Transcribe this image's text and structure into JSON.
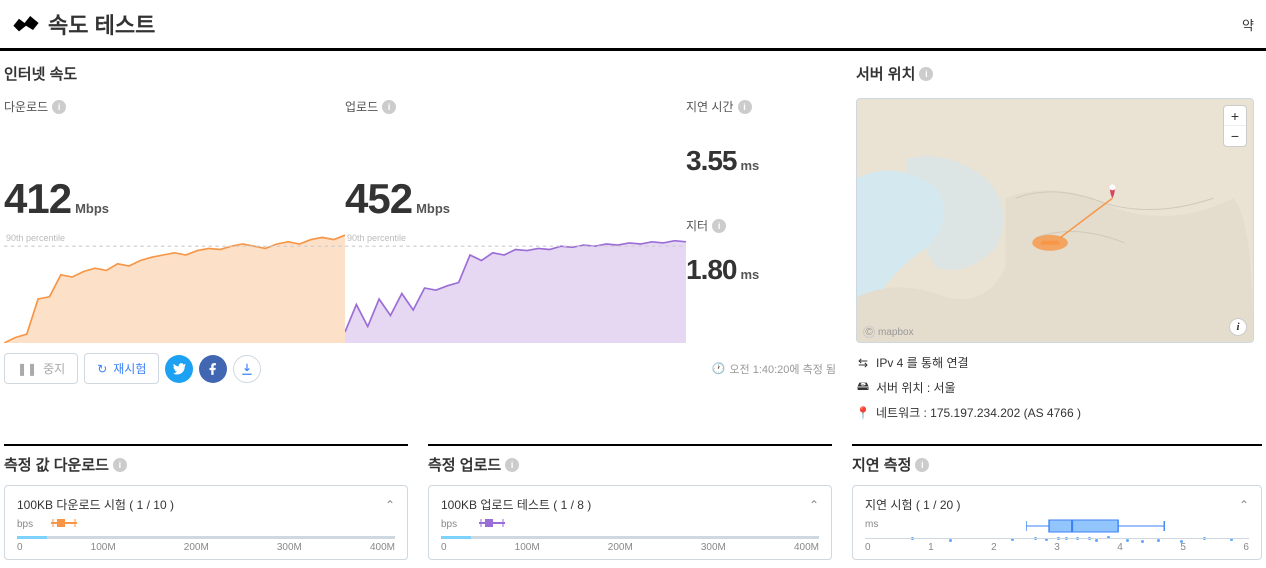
{
  "header": {
    "title": "속도 테스트",
    "right": "약"
  },
  "speed": {
    "section_title": "인터넷 속도",
    "download_label": "다운로드",
    "upload_label": "업로드",
    "latency_label": "지연 시간",
    "jitter_label": "지터",
    "download_value": "412",
    "download_unit": "Mbps",
    "upload_value": "452",
    "upload_unit": "Mbps",
    "latency_value": "3.55",
    "latency_unit": "ms",
    "jitter_value": "1.80",
    "jitter_unit": "ms",
    "percentile_label": "90th percentile",
    "download_chart": {
      "type": "area",
      "color": "#f79646",
      "fill": "#fce0c8",
      "points": [
        0,
        5,
        8,
        40,
        42,
        62,
        60,
        65,
        68,
        66,
        72,
        70,
        75,
        78,
        80,
        82,
        80,
        84,
        86,
        85,
        88,
        90,
        88,
        86,
        90,
        92,
        90,
        94,
        96,
        94,
        98
      ]
    },
    "upload_chart": {
      "type": "area",
      "color": "#9b6dd7",
      "fill": "#e6d8f3",
      "points": [
        10,
        35,
        15,
        40,
        25,
        45,
        30,
        50,
        48,
        52,
        55,
        80,
        75,
        82,
        80,
        85,
        84,
        86,
        85,
        88,
        87,
        89,
        88,
        90,
        89,
        91,
        90,
        92,
        91,
        93,
        92
      ]
    }
  },
  "controls": {
    "pause": "중지",
    "retry": "재시험",
    "timestamp": "오전 1:40:20에 측정 됨"
  },
  "server": {
    "title": "서버 위치",
    "conn": "IPv 4 를 통해 연결",
    "loc": "서버 위치 : 서울",
    "net": "네트워크 : 175.197.234.202 (AS 4766 )",
    "attrib": "mapbox"
  },
  "measurements": {
    "download": {
      "title": "측정 값 다운로드",
      "test_label": "100KB 다운로드 시험 ( 1 / 10 )",
      "unit": "bps",
      "ticks": [
        "0",
        "100M",
        "200M",
        "300M",
        "400M"
      ],
      "glyph_color": "#f79646",
      "glyph_pos_pct": 9
    },
    "upload": {
      "title": "측정 업로드",
      "test_label": "100KB 업로드 테스트 ( 1 / 8 )",
      "unit": "bps",
      "ticks": [
        "0",
        "100M",
        "200M",
        "300M",
        "400M"
      ],
      "glyph_color": "#9b6dd7",
      "glyph_pos_pct": 10
    },
    "latency": {
      "title": "지연 측정",
      "test_label": "지연 시험 ( 1 / 20 )",
      "unit": "ms",
      "ticks": [
        "0",
        "1",
        "2",
        "3",
        "4",
        "5",
        "6"
      ],
      "box": {
        "q1_pct": 48,
        "med_pct": 54,
        "q3_pct": 66,
        "wmin_pct": 42,
        "wmax_pct": 78,
        "fill": "#93c5fd",
        "stroke": "#3b82f6"
      },
      "dots_pct": [
        12,
        22,
        38,
        44,
        47,
        50,
        52,
        55,
        58,
        60,
        63,
        68,
        72,
        76,
        82,
        88,
        95
      ]
    }
  },
  "colors": {
    "border": "#cfd7e0",
    "text_muted": "#888"
  }
}
